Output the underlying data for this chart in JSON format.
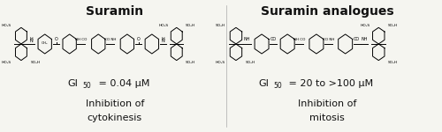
{
  "title_left": "Suramin",
  "title_right": "Suramin analogues",
  "gi50_left_val": " = 0.04 μM",
  "gi50_right_val": " = 20 to >100 μM",
  "inhibition_left_line1": "Inhibition of",
  "inhibition_left_line2": "cytokinesis",
  "inhibition_right_line1": "Inhibition of",
  "inhibition_right_line2": "mitosis",
  "bg_color": "#f5f5f0",
  "title_fontsize": 10,
  "body_fontsize": 8
}
